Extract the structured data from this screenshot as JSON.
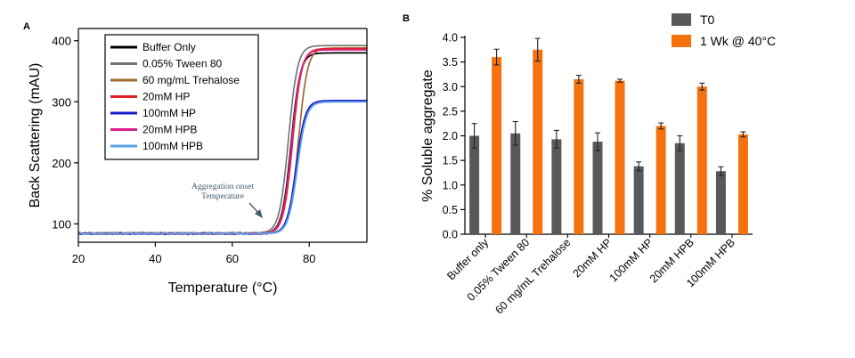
{
  "chart_data": [
    {
      "panel": "A",
      "type": "line",
      "xlabel": "Temperature (°C)",
      "ylabel": "Back Scattering (mAU)",
      "xlim": [
        20,
        95
      ],
      "ylim": [
        70,
        420
      ],
      "xticks": [
        20,
        40,
        60,
        80
      ],
      "yticks": [
        100,
        200,
        300,
        400
      ],
      "grid": false,
      "legend_position": "top-left",
      "annotation": [
        "Aggregation onset",
        "Temperature"
      ],
      "series": [
        {
          "name": "Buffer Only",
          "color": "#000000",
          "baseline": 84,
          "plateau": 380,
          "midpoint": 75.3,
          "width": 1.7
        },
        {
          "name": "0.05% Tween 80",
          "color": "#707070",
          "baseline": 85,
          "plateau": 392,
          "midpoint": 74.6,
          "width": 1.6
        },
        {
          "name": "60 mg/mL Trehalose",
          "color": "#9c6b2e",
          "baseline": 85,
          "plateau": 388,
          "midpoint": 77.2,
          "width": 1.7
        },
        {
          "name": "20mM HP",
          "color": "#e02020",
          "baseline": 84,
          "plateau": 387,
          "midpoint": 75.7,
          "width": 1.7
        },
        {
          "name": "100mM HP",
          "color": "#1a1ac8",
          "baseline": 84,
          "plateau": 302,
          "midpoint": 76.6,
          "width": 1.8
        },
        {
          "name": "20mM HPB",
          "color": "#e0208f",
          "baseline": 84,
          "plateau": 385,
          "midpoint": 75.5,
          "width": 1.7
        },
        {
          "name": "100mM HPB",
          "color": "#5aa0e8",
          "baseline": 84,
          "plateau": 300,
          "midpoint": 76.9,
          "width": 1.9
        }
      ]
    },
    {
      "panel": "B",
      "type": "bar",
      "ylabel": "% Soluble aggregate",
      "ylim": [
        0,
        4
      ],
      "yticks": [
        "0.0",
        "0.5",
        "1.0",
        "1.5",
        "2.0",
        "2.5",
        "3.0",
        "3.5",
        "4.0"
      ],
      "grid": false,
      "legend_position": "top-right",
      "categories": [
        "Buffer only",
        "0.05% Tween 80",
        "60 mg/mL Trehalose",
        "20mM HP",
        "100mM HP",
        "20mM HPB",
        "100mM HPB"
      ],
      "series": [
        {
          "name": "T0",
          "color": "#595959",
          "values": [
            2.0,
            2.05,
            1.93,
            1.88,
            1.38,
            1.85,
            1.28
          ],
          "errors": [
            0.25,
            0.24,
            0.18,
            0.18,
            0.09,
            0.15,
            0.09
          ]
        },
        {
          "name": "1 Wk @ 40°C",
          "color": "#f5720f",
          "values": [
            3.6,
            3.75,
            3.15,
            3.12,
            2.2,
            3.0,
            2.03
          ],
          "errors": [
            0.16,
            0.23,
            0.08,
            0.03,
            0.06,
            0.07,
            0.05
          ]
        }
      ]
    }
  ]
}
